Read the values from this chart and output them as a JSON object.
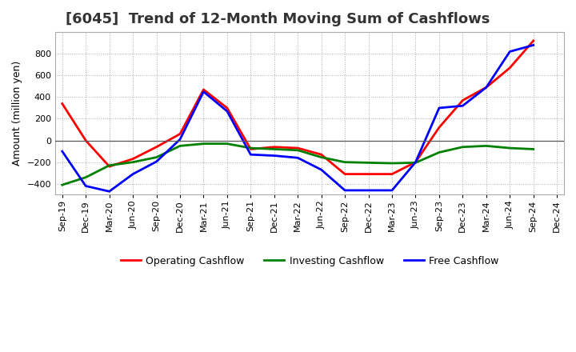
{
  "title": "[6045]  Trend of 12-Month Moving Sum of Cashflows",
  "ylabel": "Amount (million yen)",
  "x_labels": [
    "Sep-19",
    "Dec-19",
    "Mar-20",
    "Jun-20",
    "Sep-20",
    "Dec-20",
    "Mar-21",
    "Jun-21",
    "Sep-21",
    "Dec-21",
    "Mar-22",
    "Jun-22",
    "Sep-22",
    "Dec-22",
    "Mar-23",
    "Jun-23",
    "Sep-23",
    "Dec-23",
    "Mar-24",
    "Jun-24",
    "Sep-24",
    "Dec-24"
  ],
  "operating": [
    340,
    0,
    -240,
    -170,
    -60,
    60,
    470,
    300,
    -80,
    -60,
    -70,
    -130,
    -310,
    -310,
    -310,
    -200,
    120,
    370,
    490,
    670,
    920,
    null
  ],
  "investing": [
    -410,
    -340,
    -230,
    -200,
    -155,
    -50,
    -30,
    -30,
    -70,
    -80,
    -90,
    -155,
    -200,
    -205,
    -210,
    -205,
    -110,
    -60,
    -50,
    -70,
    -80,
    null
  ],
  "free": [
    -100,
    -420,
    -470,
    -310,
    -195,
    10,
    450,
    270,
    -130,
    -140,
    -160,
    -270,
    -460,
    -460,
    -460,
    -200,
    300,
    320,
    490,
    820,
    880,
    null
  ],
  "operating_color": "#ff0000",
  "investing_color": "#008000",
  "free_color": "#0000ff",
  "ylim": [
    -500,
    1000
  ],
  "yticks": [
    -400,
    -200,
    0,
    200,
    400,
    600,
    800
  ],
  "background_color": "#ffffff",
  "grid_color": "#aaaaaa",
  "linewidth": 2.0,
  "title_fontsize": 13,
  "legend_fontsize": 9,
  "ylabel_fontsize": 9,
  "tick_fontsize": 8
}
